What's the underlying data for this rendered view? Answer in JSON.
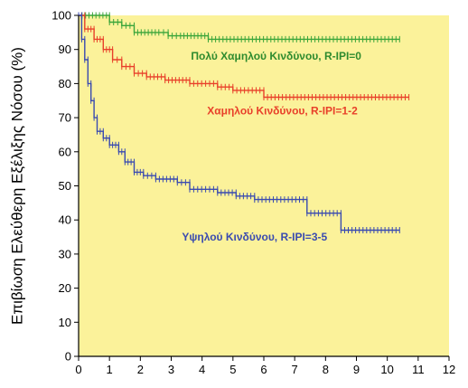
{
  "chart_data": {
    "type": "line",
    "title": "",
    "xlabel": "",
    "ylabel": "Επιβίωση Ελεύθερη Εξέλιξης Νόσου (%)",
    "xlim": [
      0,
      12
    ],
    "ylim": [
      0,
      100
    ],
    "x_ticks": [
      0,
      1,
      2,
      3,
      4,
      5,
      6,
      7,
      8,
      9,
      10,
      11,
      12
    ],
    "y_ticks": [
      0,
      10,
      20,
      30,
      40,
      50,
      60,
      70,
      80,
      90,
      100
    ],
    "plot_background": "#fbf29a",
    "grid": false,
    "series": [
      {
        "name": "Πολύ Χαμηλού Κινδύνου, R-IPI=0",
        "color": "#3aa53a",
        "points": [
          [
            0,
            100
          ],
          [
            0.9,
            100
          ],
          [
            1.0,
            98
          ],
          [
            1.4,
            97
          ],
          [
            1.8,
            95
          ],
          [
            2.6,
            95
          ],
          [
            2.9,
            94
          ],
          [
            3.3,
            94
          ],
          [
            4.2,
            93
          ],
          [
            10.4,
            93
          ]
        ]
      },
      {
        "name": "Χαμηλού Κινδύνου, R-IPI=1-2",
        "color": "#e8402a",
        "points": [
          [
            0,
            100
          ],
          [
            0.2,
            96
          ],
          [
            0.5,
            93
          ],
          [
            0.8,
            90
          ],
          [
            1.1,
            87
          ],
          [
            1.4,
            85
          ],
          [
            1.8,
            83
          ],
          [
            2.2,
            82
          ],
          [
            2.8,
            81
          ],
          [
            3.6,
            80
          ],
          [
            4.5,
            79
          ],
          [
            5.0,
            78
          ],
          [
            6.0,
            78
          ],
          [
            6.0,
            76
          ],
          [
            10.7,
            76
          ]
        ]
      },
      {
        "name": "Υψηλού Κινδύνου, R-IPI=3-5",
        "color": "#3a4bb0",
        "points": [
          [
            0,
            100
          ],
          [
            0.1,
            93
          ],
          [
            0.2,
            87
          ],
          [
            0.3,
            80
          ],
          [
            0.4,
            75
          ],
          [
            0.5,
            70
          ],
          [
            0.6,
            66
          ],
          [
            0.8,
            64
          ],
          [
            1.0,
            62
          ],
          [
            1.3,
            60
          ],
          [
            1.5,
            57
          ],
          [
            1.8,
            54
          ],
          [
            2.1,
            53
          ],
          [
            2.5,
            52
          ],
          [
            3.2,
            51
          ],
          [
            3.6,
            49
          ],
          [
            4.5,
            48
          ],
          [
            5.1,
            47
          ],
          [
            5.7,
            46
          ],
          [
            7.4,
            46
          ],
          [
            7.4,
            42
          ],
          [
            8.5,
            42
          ],
          [
            8.5,
            37
          ],
          [
            10.4,
            37
          ]
        ]
      }
    ],
    "annotations": [
      {
        "text": "Πολύ Χαμηλού Κινδύνου, R-IPI=0",
        "x": 6.4,
        "y": 87,
        "color": "#2e8b2e"
      },
      {
        "text": "Χαμηλού Κινδύνου, R-IPI=1-2",
        "x": 6.6,
        "y": 71,
        "color": "#e8402a"
      },
      {
        "text": "Υψηλού Κινδύνου, R-IPI=3-5",
        "x": 5.7,
        "y": 34,
        "color": "#3a4bb0"
      }
    ]
  }
}
